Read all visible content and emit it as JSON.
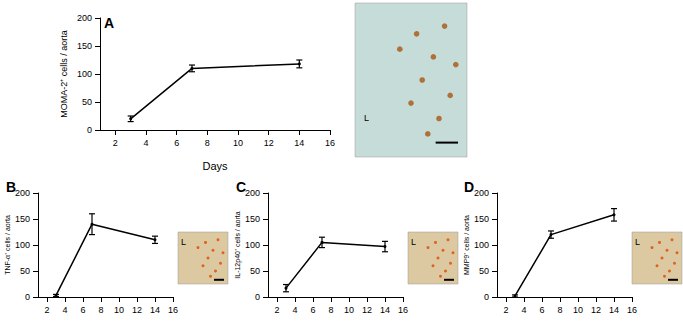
{
  "chart_data": [
    {
      "type": "line",
      "title": "A",
      "xlabel": "Days",
      "ylabel": "MOMA-2⁺ cells / aorta",
      "x": [
        3,
        7,
        14
      ],
      "values": [
        20,
        110,
        118
      ],
      "errors": [
        5,
        6,
        7
      ],
      "color": "#000000",
      "xlim": [
        1,
        16
      ],
      "xticks": [
        2,
        4,
        6,
        8,
        10,
        12,
        14,
        16
      ],
      "ylim": [
        0,
        200
      ],
      "yticks": [
        0,
        50,
        100,
        150,
        200
      ],
      "annotations": [
        "L"
      ]
    },
    {
      "type": "line",
      "title": "B",
      "ylabel": "TNF-α⁺ cells / aorta",
      "x": [
        3,
        7,
        14
      ],
      "values": [
        3,
        140,
        110
      ],
      "errors": [
        2,
        20,
        7
      ],
      "color": "#000000",
      "xlim": [
        1,
        16
      ],
      "xticks": [
        2,
        4,
        6,
        8,
        10,
        12,
        14,
        16
      ],
      "ylim": [
        0,
        200
      ],
      "yticks": [
        0,
        50,
        100,
        150,
        200
      ],
      "annotations": [
        "L"
      ]
    },
    {
      "type": "line",
      "title": "C",
      "ylabel": "IL-12p40⁺ cells / aorta",
      "x": [
        3,
        7,
        14
      ],
      "values": [
        17,
        105,
        97
      ],
      "errors": [
        7,
        10,
        10
      ],
      "color": "#000000",
      "xlim": [
        1,
        16
      ],
      "xticks": [
        2,
        4,
        6,
        8,
        10,
        12,
        14,
        16
      ],
      "ylim": [
        0,
        200
      ],
      "yticks": [
        0,
        50,
        100,
        150,
        200
      ],
      "annotations": [
        "L"
      ]
    },
    {
      "type": "line",
      "title": "D",
      "ylabel": "MMP9⁺ cells / aorta",
      "x": [
        3,
        7,
        14
      ],
      "values": [
        2,
        120,
        158
      ],
      "errors": [
        2,
        7,
        12
      ],
      "color": "#000000",
      "xlim": [
        1,
        16
      ],
      "xticks": [
        2,
        4,
        6,
        8,
        10,
        12,
        14,
        16
      ],
      "ylim": [
        0,
        200
      ],
      "yticks": [
        0,
        50,
        100,
        150,
        200
      ],
      "annotations": [
        "L"
      ]
    }
  ]
}
